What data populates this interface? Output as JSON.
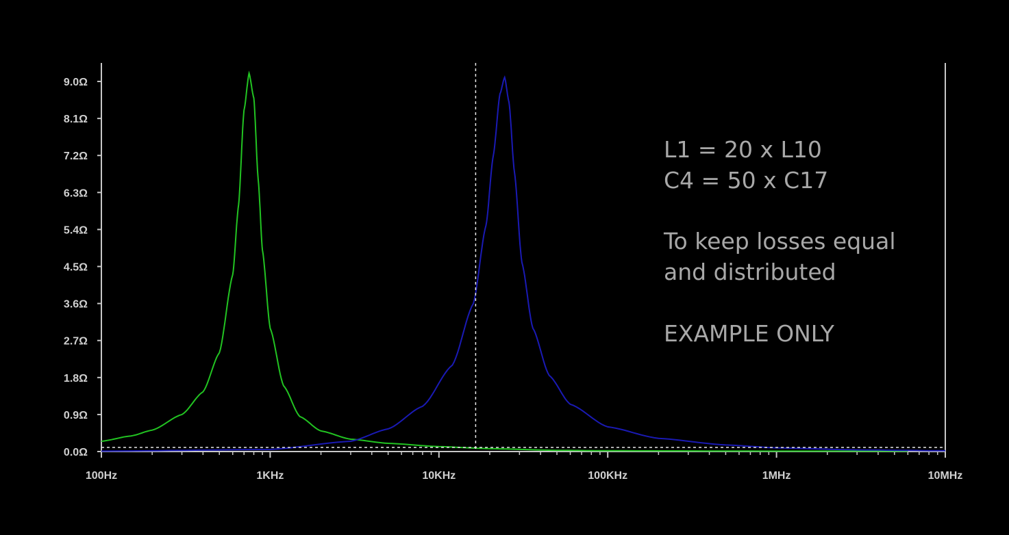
{
  "chart_data": {
    "type": "line",
    "x_scale": "log",
    "xlim_hz": [
      100,
      10000000
    ],
    "ylim_ohm": [
      0,
      9.45
    ],
    "x_ticks": [
      {
        "value": 100,
        "label": "100Hz"
      },
      {
        "value": 1000,
        "label": "1KHz"
      },
      {
        "value": 10000,
        "label": "10KHz"
      },
      {
        "value": 100000,
        "label": "100KHz"
      },
      {
        "value": 1000000,
        "label": "1MHz"
      },
      {
        "value": 10000000,
        "label": "10MHz"
      }
    ],
    "y_ticks": [
      {
        "value": 0.0,
        "label": "0.0Ω"
      },
      {
        "value": 0.9,
        "label": "0.9Ω"
      },
      {
        "value": 1.8,
        "label": "1.8Ω"
      },
      {
        "value": 2.7,
        "label": "2.7Ω"
      },
      {
        "value": 3.6,
        "label": "3.6Ω"
      },
      {
        "value": 4.5,
        "label": "4.5Ω"
      },
      {
        "value": 5.4,
        "label": "5.4Ω"
      },
      {
        "value": 6.3,
        "label": "6.3Ω"
      },
      {
        "value": 7.2,
        "label": "7.2Ω"
      },
      {
        "value": 8.1,
        "label": "8.1Ω"
      },
      {
        "value": 9.0,
        "label": "9.0Ω"
      }
    ],
    "series": [
      {
        "color": "#22c422",
        "x": [
          100,
          150,
          200,
          300,
          400,
          500,
          600,
          650,
          700,
          750,
          800,
          850,
          900,
          1000,
          1200,
          1500,
          2000,
          3000,
          5000,
          10000,
          20000,
          50000,
          100000,
          1000000,
          6000000
        ],
        "y": [
          0.25,
          0.38,
          0.52,
          0.9,
          1.45,
          2.4,
          4.3,
          6.0,
          8.3,
          9.2,
          8.6,
          6.6,
          4.9,
          3.0,
          1.6,
          0.85,
          0.5,
          0.3,
          0.2,
          0.12,
          0.07,
          0.03,
          0.02,
          0.01,
          0.01
        ]
      },
      {
        "color": "#1a1ab4",
        "x": [
          100,
          1000,
          3000,
          5000,
          8000,
          12000,
          16000,
          19000,
          21000,
          23000,
          24500,
          26000,
          28000,
          31000,
          36000,
          45000,
          60000,
          100000,
          200000,
          500000,
          1000000,
          3000000,
          10000000
        ],
        "y": [
          0.01,
          0.05,
          0.25,
          0.55,
          1.1,
          2.1,
          3.6,
          5.5,
          7.2,
          8.7,
          9.1,
          8.5,
          6.8,
          4.6,
          3.0,
          1.85,
          1.15,
          0.6,
          0.32,
          0.16,
          0.09,
          0.04,
          0.02
        ]
      }
    ],
    "cursor_x_hz": 16500,
    "reference_line_y_ohm": 0.1,
    "grid": false
  },
  "annotation": {
    "line1": "L1 = 20 x L10",
    "line2": "C4 = 50 x C17",
    "line3": "To keep losses equal",
    "line4": "and distributed",
    "line5": "EXAMPLE ONLY"
  },
  "colors": {
    "background": "#000000",
    "axis": "#c8c8c8",
    "text": "#a8a8a8",
    "cursor": "#e8e8e8"
  }
}
